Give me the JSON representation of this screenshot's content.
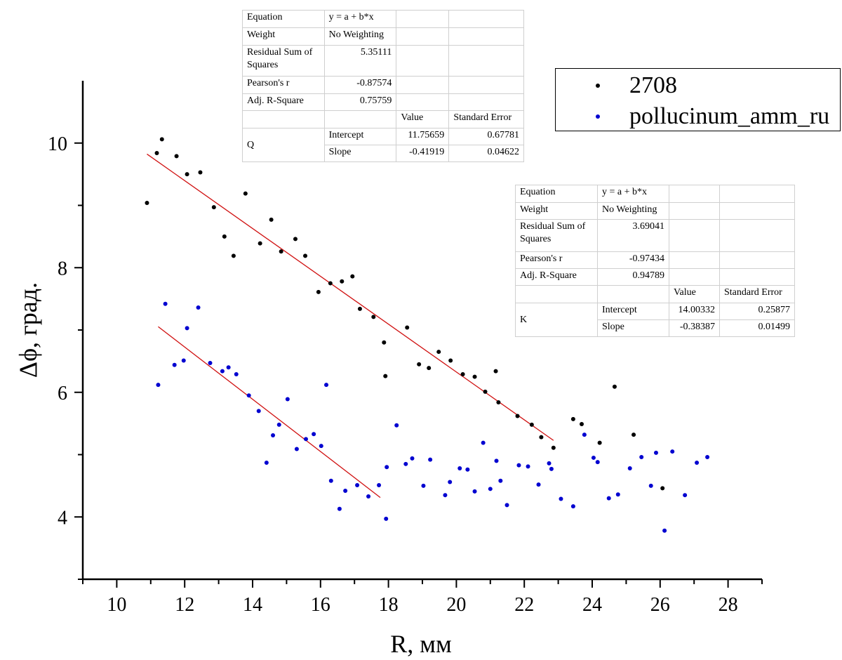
{
  "chart_data": {
    "type": "scatter",
    "xlabel": "R, мм",
    "ylabel": "Δϕ, град.",
    "xlim": [
      9,
      29
    ],
    "ylim": [
      3,
      11
    ],
    "xticks": [
      10,
      12,
      14,
      16,
      18,
      20,
      22,
      24,
      26,
      28
    ],
    "yticks": [
      4,
      6,
      8,
      10
    ],
    "grid": false,
    "legend_position": "top-right",
    "series": [
      {
        "name": "2708",
        "color": "#000000",
        "x": [
          10.89,
          11.18,
          11.33,
          11.76,
          12.07,
          12.46,
          12.86,
          13.17,
          13.44,
          13.79,
          14.22,
          14.55,
          14.84,
          15.26,
          15.55,
          15.94,
          16.29,
          16.63,
          16.94,
          17.16,
          17.56,
          17.87,
          17.91,
          18.55,
          18.9,
          19.19,
          19.48,
          19.83,
          20.19,
          20.54,
          20.85,
          21.16,
          21.24,
          21.8,
          22.22,
          22.5,
          22.86,
          23.44,
          23.69,
          24.22,
          24.66,
          25.22,
          26.07
        ],
        "y": [
          9.04,
          9.84,
          10.06,
          9.79,
          9.5,
          9.53,
          8.97,
          8.5,
          8.19,
          9.19,
          8.39,
          8.77,
          8.26,
          8.46,
          8.19,
          7.61,
          7.75,
          7.78,
          7.86,
          7.34,
          7.21,
          6.8,
          6.26,
          7.04,
          6.45,
          6.39,
          6.65,
          6.51,
          6.29,
          6.25,
          6.01,
          6.34,
          5.84,
          5.62,
          5.48,
          5.28,
          5.11,
          5.57,
          5.49,
          5.19,
          6.09,
          5.32,
          4.46
        ]
      },
      {
        "name": "pollucinum_amm_ru",
        "color": "#0000d0",
        "x": [
          11.22,
          11.43,
          11.7,
          11.97,
          12.07,
          12.4,
          12.75,
          13.11,
          13.29,
          13.52,
          13.89,
          14.18,
          14.41,
          14.6,
          14.78,
          15.03,
          15.3,
          15.57,
          15.8,
          16.02,
          16.17,
          16.31,
          16.56,
          16.73,
          17.08,
          17.41,
          17.72,
          17.93,
          17.95,
          18.24,
          18.51,
          18.7,
          19.03,
          19.23,
          19.67,
          19.81,
          20.1,
          20.33,
          20.54,
          20.79,
          21.0,
          21.18,
          21.3,
          21.49,
          21.84,
          22.11,
          22.42,
          22.73,
          22.8,
          23.08,
          23.44,
          23.77,
          24.04,
          24.16,
          24.49,
          24.76,
          25.11,
          25.45,
          25.73,
          25.88,
          26.13,
          26.36,
          26.73,
          27.08,
          27.39
        ],
        "y": [
          6.12,
          7.42,
          6.44,
          6.51,
          7.03,
          7.36,
          6.47,
          6.34,
          6.4,
          6.29,
          5.95,
          5.7,
          4.87,
          5.31,
          5.48,
          5.89,
          5.09,
          5.25,
          5.33,
          5.14,
          6.12,
          4.58,
          4.13,
          4.42,
          4.51,
          4.33,
          4.51,
          3.97,
          4.8,
          5.47,
          4.85,
          4.94,
          4.5,
          4.92,
          4.35,
          4.56,
          4.78,
          4.76,
          4.41,
          5.19,
          4.45,
          4.9,
          4.58,
          4.19,
          4.83,
          4.81,
          4.52,
          4.86,
          4.77,
          4.29,
          4.17,
          5.32,
          4.95,
          4.88,
          4.3,
          4.36,
          4.78,
          4.96,
          4.5,
          5.03,
          3.78,
          5.05,
          4.35,
          4.87,
          4.96
        ]
      }
    ],
    "fits": [
      {
        "label": "K",
        "series": "2708",
        "intercept": 14.00332,
        "slope": -0.38387,
        "x_range": [
          10.89,
          22.86
        ],
        "color": "#d01010"
      },
      {
        "label": "Q",
        "series": "pollucinum_amm_ru",
        "intercept": 11.75659,
        "slope": -0.41919,
        "x_range": [
          11.22,
          17.76
        ],
        "color": "#d01010"
      }
    ]
  },
  "fit_tables": [
    {
      "equation_label": "Equation",
      "equation": "y = a + b*x",
      "weight_label": "Weight",
      "weight": "No Weighting",
      "rss_label": "Residual Sum of Squares",
      "rss": "5.35111",
      "pearson_label": "Pearson's r",
      "pearson": "-0.87574",
      "adjr2_label": "Adj. R-Square",
      "adjr2": "0.75759",
      "value_header": "Value",
      "se_header": "Standard Error",
      "name": "Q",
      "intercept_label": "Intercept",
      "intercept_value": "11.75659",
      "intercept_se": "0.67781",
      "slope_label": "Slope",
      "slope_value": "-0.41919",
      "slope_se": "0.04622"
    },
    {
      "equation_label": "Equation",
      "equation": "y = a + b*x",
      "weight_label": "Weight",
      "weight": "No Weighting",
      "rss_label": "Residual Sum of Squares",
      "rss": "3.69041",
      "pearson_label": "Pearson's r",
      "pearson": "-0.97434",
      "adjr2_label": "Adj. R-Square",
      "adjr2": "0.94789",
      "value_header": "Value",
      "se_header": "Standard Error",
      "name": "K",
      "intercept_label": "Intercept",
      "intercept_value": "14.00332",
      "intercept_se": "0.25877",
      "slope_label": "Slope",
      "slope_value": "-0.38387",
      "slope_se": "0.01499"
    }
  ],
  "legend": {
    "items": [
      {
        "label": "2708",
        "color": "#000000"
      },
      {
        "label": "pollucinum_amm_ru",
        "color": "#0000d0"
      }
    ]
  }
}
